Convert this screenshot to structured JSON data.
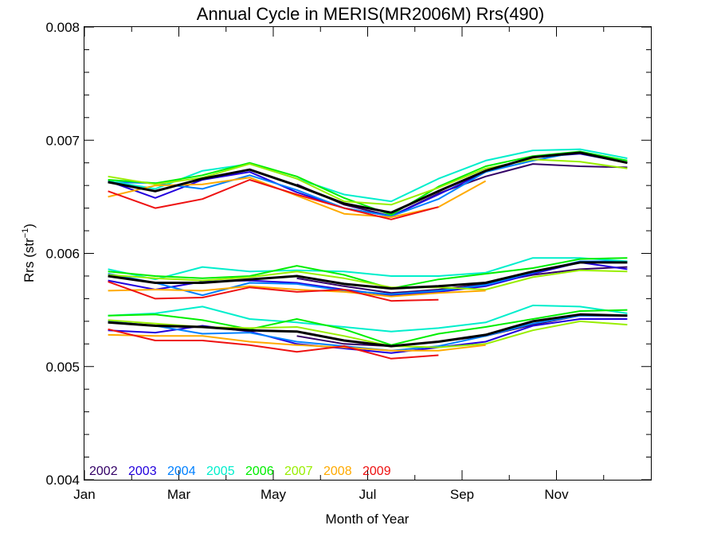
{
  "chart_data": {
    "type": "line",
    "title": "Annual Cycle in MERIS(MR2006M) Rrs(490)",
    "xlabel": "Month of Year",
    "ylabel_main": "Rrs (str",
    "ylabel_sup": "−1",
    "ylabel_close": ")",
    "xlim": [
      0,
      12
    ],
    "ylim": [
      0.004,
      0.008
    ],
    "x_ticks": [
      {
        "value": 0,
        "label": "Jan"
      },
      {
        "value": 2,
        "label": "Mar"
      },
      {
        "value": 4,
        "label": "May"
      },
      {
        "value": 6,
        "label": "Jul"
      },
      {
        "value": 8,
        "label": "Sep"
      },
      {
        "value": 10,
        "label": "Nov"
      }
    ],
    "y_ticks": [
      {
        "value": 0.004,
        "label": "0.004"
      },
      {
        "value": 0.005,
        "label": "0.005"
      },
      {
        "value": 0.006,
        "label": "0.006"
      },
      {
        "value": 0.007,
        "label": "0.007"
      },
      {
        "value": 0.008,
        "label": "0.008"
      }
    ],
    "grid": false,
    "legend_position": "bottom-left",
    "x": [
      0.5,
      1.5,
      2.5,
      3.5,
      4.5,
      5.5,
      6.5,
      7.5,
      8.5,
      9.5,
      10.5,
      11.5
    ],
    "series": [
      {
        "name": "2002",
        "color": "#330066",
        "groups": [
          [
            null,
            null,
            null,
            null,
            0.00661,
            0.00643,
            0.00633,
            0.00653,
            0.00668,
            0.00679,
            0.00677,
            0.00676
          ],
          [
            null,
            null,
            null,
            null,
            0.00578,
            0.00571,
            0.00565,
            0.00568,
            0.00573,
            0.00581,
            0.00586,
            0.00588
          ],
          [
            null,
            null,
            null,
            null,
            0.00527,
            0.0052,
            0.00518,
            0.00522,
            0.00527,
            0.00537,
            0.00545,
            0.00545
          ]
        ]
      },
      {
        "name": "2003",
        "color": "#2200dd",
        "groups": [
          [
            0.00664,
            0.00649,
            0.00665,
            0.00672,
            0.00654,
            0.0064,
            0.00633,
            0.00652,
            0.00672,
            0.00685,
            0.00688,
            0.0068
          ],
          [
            0.00576,
            0.00568,
            0.00575,
            0.00576,
            0.00574,
            0.00568,
            0.00563,
            0.00566,
            0.00571,
            0.00582,
            0.00592,
            0.00586
          ],
          [
            0.00532,
            0.0053,
            0.00536,
            0.00531,
            0.0052,
            0.00516,
            0.00512,
            0.00517,
            0.00522,
            0.00536,
            0.00542,
            0.00542
          ]
        ]
      },
      {
        "name": "2004",
        "color": "#0080ff",
        "groups": [
          [
            0.00663,
            0.00662,
            0.00657,
            0.00669,
            0.00656,
            0.0064,
            0.00633,
            0.00648,
            0.00672,
            0.00682,
            0.0069,
            0.0068
          ],
          [
            0.00582,
            0.00574,
            0.00563,
            0.00574,
            0.00573,
            0.00567,
            0.00564,
            0.00567,
            0.00572,
            0.00583,
            0.00593,
            0.00593
          ],
          [
            0.0054,
            0.00536,
            0.00529,
            0.0053,
            0.00522,
            0.00518,
            0.00514,
            0.00518,
            0.00527,
            0.00538,
            0.00545,
            0.00545
          ]
        ]
      },
      {
        "name": "2005",
        "color": "#00eecc",
        "groups": [
          [
            0.00664,
            0.00657,
            0.00673,
            0.00679,
            0.00666,
            0.00652,
            0.00646,
            0.00666,
            0.00682,
            0.00691,
            0.00692,
            0.00684
          ],
          [
            0.00586,
            0.00577,
            0.00588,
            0.00584,
            0.00585,
            0.00584,
            0.0058,
            0.0058,
            0.00583,
            0.00596,
            0.00596,
            0.00593
          ],
          [
            0.00545,
            0.00547,
            0.00553,
            0.00542,
            0.00539,
            0.00535,
            0.00531,
            0.00534,
            0.00539,
            0.00554,
            0.00553,
            0.00547
          ]
        ]
      },
      {
        "name": "2006",
        "color": "#00ee00",
        "groups": [
          [
            0.00665,
            0.00662,
            0.00669,
            0.0068,
            0.00668,
            0.00649,
            0.00634,
            0.00659,
            0.00677,
            0.00686,
            0.0069,
            0.00682
          ],
          [
            0.00584,
            0.0058,
            0.00578,
            0.0058,
            0.00589,
            0.00581,
            0.00569,
            0.00577,
            0.00582,
            0.00587,
            0.00595,
            0.00596
          ],
          [
            0.00545,
            0.00546,
            0.00541,
            0.00533,
            0.00542,
            0.00533,
            0.00519,
            0.00529,
            0.00535,
            0.00542,
            0.00549,
            0.0055
          ]
        ]
      },
      {
        "name": "2007",
        "color": "#99ee00",
        "groups": [
          [
            0.00668,
            0.00661,
            0.00667,
            0.00679,
            0.00666,
            0.00646,
            0.00643,
            0.00658,
            0.00675,
            0.00683,
            0.00681,
            0.00675
          ],
          [
            0.00581,
            0.00578,
            0.00576,
            0.00579,
            0.00584,
            0.00578,
            0.0057,
            0.0057,
            0.00568,
            0.00579,
            0.00585,
            0.00584
          ],
          [
            0.00541,
            0.00538,
            0.00535,
            0.00534,
            0.00535,
            0.00527,
            0.00518,
            0.00517,
            0.0052,
            0.00532,
            0.0054,
            0.00537
          ]
        ]
      },
      {
        "name": "2008",
        "color": "#ffaa00",
        "groups": [
          [
            0.0065,
            0.0066,
            0.00661,
            0.00667,
            0.00651,
            0.00635,
            0.00632,
            0.00641,
            0.00664,
            null,
            null,
            null
          ],
          [
            0.00567,
            0.00568,
            0.00567,
            0.00571,
            0.00568,
            0.00566,
            0.00562,
            0.00565,
            0.00567,
            null,
            null,
            null
          ],
          [
            0.00528,
            0.00527,
            0.00527,
            0.00522,
            0.00519,
            0.00517,
            0.00514,
            0.00514,
            0.00519,
            null,
            null,
            null
          ]
        ]
      },
      {
        "name": "2009",
        "color": "#ee1111",
        "groups": [
          [
            0.00655,
            0.0064,
            0.00648,
            0.00665,
            0.00652,
            0.0064,
            0.0063,
            0.00641,
            null,
            null,
            null,
            null
          ],
          [
            0.00575,
            0.0056,
            0.00561,
            0.0057,
            0.00566,
            0.00568,
            0.00558,
            0.00559,
            null,
            null,
            null,
            null
          ],
          [
            0.00533,
            0.00523,
            0.00523,
            0.00519,
            0.00513,
            0.00518,
            0.00507,
            0.0051,
            null,
            null,
            null,
            null
          ]
        ]
      },
      {
        "name": "",
        "color": "#000000",
        "thick": true,
        "groups": [
          [
            0.00663,
            0.00655,
            0.00666,
            0.00674,
            0.0066,
            0.00644,
            0.00636,
            0.00655,
            0.00673,
            0.00685,
            0.00689,
            0.0068
          ],
          [
            0.0058,
            0.00574,
            0.00574,
            0.00577,
            0.0058,
            0.00573,
            0.00569,
            0.00571,
            0.00574,
            0.00584,
            0.00592,
            0.00592
          ],
          [
            0.00539,
            0.00536,
            0.00535,
            0.00532,
            0.00531,
            0.00523,
            0.00518,
            0.00522,
            0.00528,
            0.0054,
            0.00546,
            0.00545
          ]
        ]
      }
    ]
  }
}
